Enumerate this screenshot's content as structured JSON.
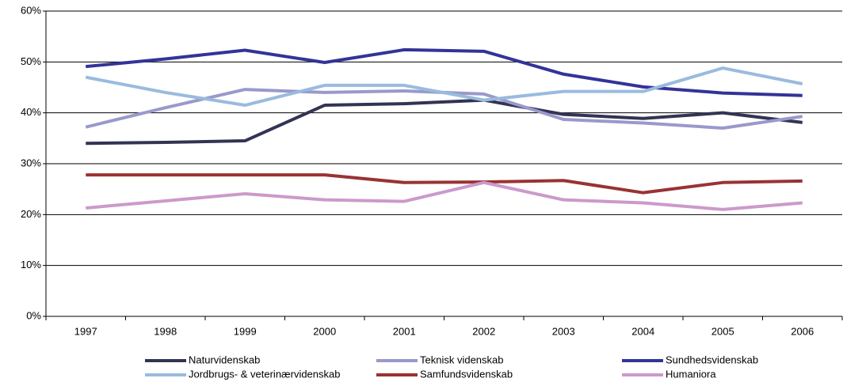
{
  "chart_data": {
    "type": "line",
    "categories": [
      "1997",
      "1998",
      "1999",
      "2000",
      "2001",
      "2002",
      "2003",
      "2004",
      "2005",
      "2006"
    ],
    "series": [
      {
        "name": "Naturvidenskab",
        "color": "#333355",
        "values": [
          34,
          34.2,
          34.5,
          41.5,
          41.8,
          42.5,
          39.7,
          38.9,
          40,
          38.1
        ]
      },
      {
        "name": "Teknisk videnskab",
        "color": "#9999cc",
        "values": [
          37.2,
          41,
          44.6,
          44,
          44.3,
          43.7,
          38.7,
          38,
          37,
          39.3
        ]
      },
      {
        "name": "Sundhedsvidenskab",
        "color": "#333399",
        "values": [
          49.1,
          50.6,
          52.3,
          49.9,
          52.4,
          52.1,
          47.6,
          45.1,
          43.9,
          43.4
        ]
      },
      {
        "name": "Jordbrugs- & veterinærvidenskab",
        "color": "#99bbdd",
        "values": [
          47,
          44,
          41.5,
          45.4,
          45.4,
          42.5,
          44.2,
          44.2,
          48.8,
          45.7
        ]
      },
      {
        "name": "Samfundsvidenskab",
        "color": "#993333",
        "values": [
          27.8,
          27.8,
          27.8,
          27.8,
          26.3,
          26.4,
          26.7,
          24.3,
          26.3,
          26.6
        ]
      },
      {
        "name": "Humaniora",
        "color": "#cc99cc",
        "values": [
          21.3,
          22.7,
          24.1,
          22.9,
          22.6,
          26.3,
          22.9,
          22.3,
          21,
          22.3
        ]
      }
    ],
    "ylim": [
      0,
      60
    ],
    "yticks": [
      {
        "value": 0,
        "label": "0%"
      },
      {
        "value": 10,
        "label": "10%"
      },
      {
        "value": 20,
        "label": "20%"
      },
      {
        "value": 30,
        "label": "30%"
      },
      {
        "value": 40,
        "label": "40%"
      },
      {
        "value": 50,
        "label": "50%"
      },
      {
        "value": 60,
        "label": "60%"
      }
    ],
    "grid": true,
    "legend": "bottom"
  }
}
